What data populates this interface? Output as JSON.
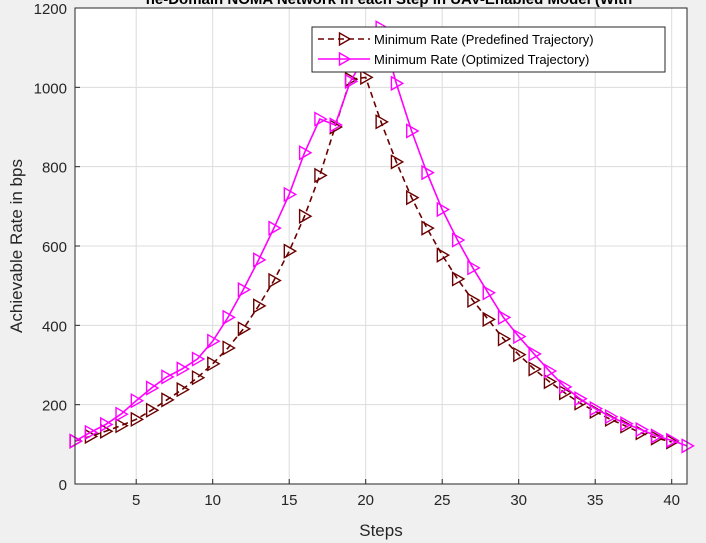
{
  "chart_data": {
    "type": "line",
    "title": "ne-Domain NOMA Network in each Step in UAV-Enabled Model (With",
    "xlabel": "Steps",
    "ylabel": "Achievable Rate in bps",
    "xlim": [
      1,
      41
    ],
    "ylim": [
      0,
      1200
    ],
    "xticks": [
      5,
      10,
      15,
      20,
      25,
      30,
      35,
      40
    ],
    "yticks": [
      0,
      200,
      400,
      600,
      800,
      1000,
      1200
    ],
    "grid": true,
    "legend_position": "top-right",
    "series": [
      {
        "name": "Minimum Rate (Predefined Trajectory)",
        "color": "#6b0000",
        "line_style": "dashed",
        "marker": "triangle-right",
        "x": [
          1,
          2,
          3,
          4,
          5,
          6,
          7,
          8,
          9,
          10,
          11,
          12,
          13,
          14,
          15,
          16,
          17,
          18,
          19,
          20,
          21,
          22,
          23,
          24,
          25,
          26,
          27,
          28,
          29,
          30,
          31,
          32,
          33,
          34,
          35,
          36,
          37,
          38,
          39,
          40
        ],
        "y": [
          108,
          120,
          133,
          147,
          163,
          186,
          212,
          238,
          268,
          303,
          343,
          391,
          449,
          513,
          587,
          675,
          778,
          900,
          1020,
          1025,
          913,
          812,
          722,
          645,
          577,
          517,
          463,
          415,
          366,
          326,
          290,
          258,
          230,
          204,
          183,
          163,
          146,
          129,
          116,
          106
        ]
      },
      {
        "name": "Minimum Rate (Optimized Trajectory)",
        "color": "#ff00ff",
        "line_style": "solid",
        "marker": "triangle-right",
        "x": [
          1,
          2,
          3,
          4,
          5,
          6,
          7,
          8,
          9,
          10,
          11,
          12,
          13,
          14,
          15,
          16,
          17,
          18,
          19,
          20,
          21,
          22,
          23,
          24,
          25,
          26,
          27,
          28,
          29,
          30,
          31,
          32,
          33,
          34,
          35,
          36,
          37,
          38,
          39,
          40,
          41
        ],
        "y": [
          108,
          130,
          150,
          176,
          210,
          242,
          270,
          290,
          315,
          360,
          420,
          490,
          565,
          645,
          730,
          835,
          920,
          905,
          1015,
          1080,
          1150,
          1010,
          890,
          785,
          692,
          615,
          545,
          482,
          420,
          372,
          328,
          285,
          245,
          215,
          190,
          170,
          152,
          137,
          121,
          110,
          96
        ]
      }
    ]
  }
}
